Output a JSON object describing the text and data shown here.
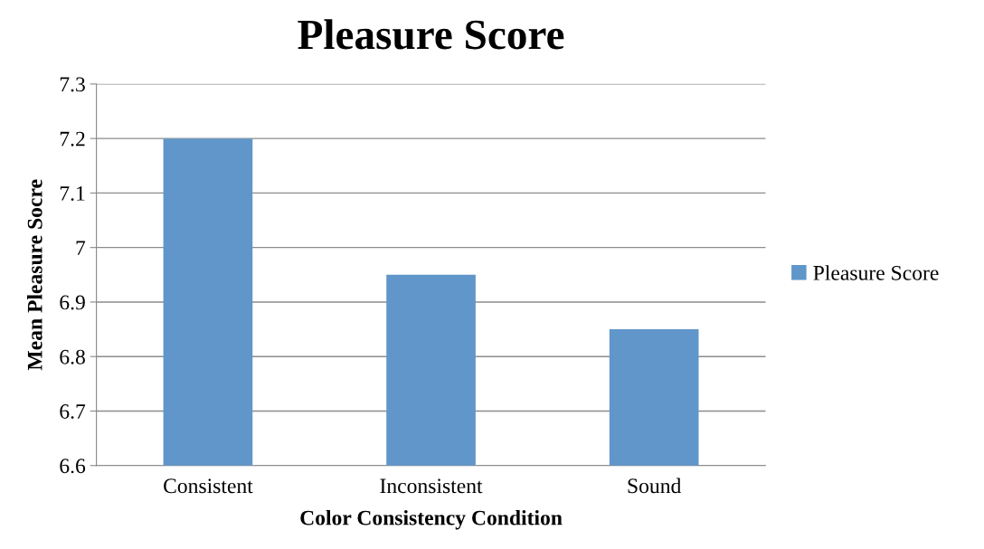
{
  "chart_data": {
    "type": "bar",
    "title": "Pleasure Score",
    "xlabel": "Color Consistency Condition",
    "ylabel": "Mean Pleasure Socre",
    "categories": [
      "Consistent",
      "Inconsistent",
      "Sound"
    ],
    "series": [
      {
        "name": "Pleasure Score",
        "color": "#6096c9",
        "values": [
          7.2,
          6.95,
          6.85
        ]
      }
    ],
    "ylim": [
      6.6,
      7.3
    ],
    "yticks": [
      {
        "value": 6.6,
        "label": "6.6"
      },
      {
        "value": 6.7,
        "label": "6.7"
      },
      {
        "value": 6.8,
        "label": "6.8"
      },
      {
        "value": 6.9,
        "label": "6.9"
      },
      {
        "value": 7,
        "label": "7"
      },
      {
        "value": 7.1,
        "label": "7.1"
      },
      {
        "value": 7.2,
        "label": "7.2"
      },
      {
        "value": 7.3,
        "label": "7.3"
      }
    ],
    "grid": "y",
    "legend": "right"
  }
}
